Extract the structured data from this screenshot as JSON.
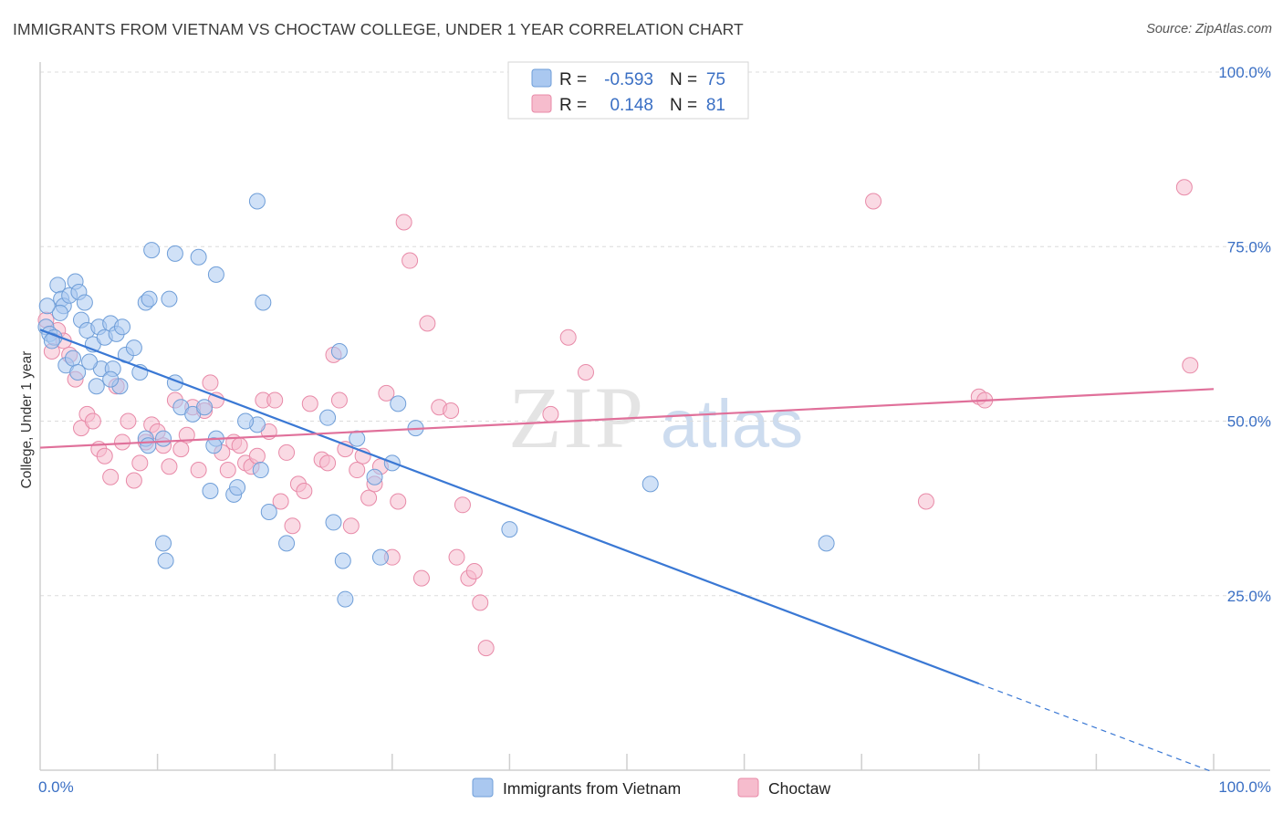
{
  "title": "IMMIGRANTS FROM VIETNAM VS CHOCTAW COLLEGE, UNDER 1 YEAR CORRELATION CHART",
  "source": "Source: ZipAtlas.com",
  "watermark": {
    "zip": "ZIP",
    "atlas": "atlas"
  },
  "colors": {
    "blue_fill": "#aac8f0",
    "blue_stroke": "#6f9ed8",
    "blue_line": "#3a78d4",
    "pink_fill": "#f6bccd",
    "pink_stroke": "#e88aa8",
    "pink_line": "#e0709a",
    "tick_text": "#3a6fc4",
    "grid": "#dcdcdc"
  },
  "legend": {
    "rows": [
      {
        "r_label": "R =",
        "r_value": "-0.593",
        "n_label": "N =",
        "n_value": "75"
      },
      {
        "r_label": "R =",
        "r_value": "0.148",
        "n_label": "N =",
        "n_value": "81"
      }
    ]
  },
  "chart_data": {
    "type": "scatter",
    "xlabel": "",
    "ylabel": "College, Under 1 year",
    "xlim": [
      0,
      100
    ],
    "ylim": [
      0,
      100
    ],
    "x_tick_labels": [
      "0.0%",
      "100.0%"
    ],
    "y_ticks": [
      25,
      50,
      75,
      100
    ],
    "y_tick_labels": [
      "25.0%",
      "50.0%",
      "75.0%",
      "100.0%"
    ],
    "grid": "horizontal dashed",
    "legend_position": "top-center",
    "series": [
      {
        "name": "Immigrants from Vietnam",
        "color": "#aac8f0",
        "trend": {
          "x": [
            0,
            80
          ],
          "y": [
            63.1,
            12.4
          ],
          "dashed_extension": {
            "x": [
              80,
              100
            ],
            "y": [
              12.4,
              -0.3
            ]
          }
        },
        "points": [
          [
            1.5,
            69.5
          ],
          [
            1.8,
            67.5
          ],
          [
            2.0,
            66.5
          ],
          [
            2.5,
            68.0
          ],
          [
            3.0,
            70.0
          ],
          [
            3.3,
            68.5
          ],
          [
            1.7,
            65.5
          ],
          [
            3.5,
            64.5
          ],
          [
            4.0,
            63.0
          ],
          [
            4.5,
            61.0
          ],
          [
            5.0,
            63.5
          ],
          [
            5.5,
            62.0
          ],
          [
            6.0,
            64.0
          ],
          [
            6.5,
            62.5
          ],
          [
            7.0,
            63.5
          ],
          [
            3.8,
            67.0
          ],
          [
            4.8,
            55.0
          ],
          [
            5.2,
            57.5
          ],
          [
            6.2,
            57.5
          ],
          [
            7.3,
            59.5
          ],
          [
            8.0,
            60.5
          ],
          [
            8.5,
            57.0
          ],
          [
            9.0,
            67.0
          ],
          [
            9.3,
            67.5
          ],
          [
            6.8,
            55.0
          ],
          [
            6.0,
            56.0
          ],
          [
            9.5,
            74.5
          ],
          [
            11.0,
            67.5
          ],
          [
            11.5,
            74.0
          ],
          [
            13.5,
            73.5
          ],
          [
            15.0,
            71.0
          ],
          [
            11.5,
            55.5
          ],
          [
            12.0,
            52.0
          ],
          [
            13.0,
            51.0
          ],
          [
            14.0,
            52.0
          ],
          [
            18.5,
            81.5
          ],
          [
            19.0,
            67.0
          ],
          [
            15.0,
            47.5
          ],
          [
            14.8,
            46.5
          ],
          [
            10.5,
            47.5
          ],
          [
            9.0,
            47.5
          ],
          [
            9.2,
            46.5
          ],
          [
            18.5,
            49.5
          ],
          [
            17.5,
            50.0
          ],
          [
            14.5,
            40.0
          ],
          [
            16.5,
            39.5
          ],
          [
            16.8,
            40.5
          ],
          [
            18.8,
            43.0
          ],
          [
            19.5,
            37.0
          ],
          [
            21.0,
            32.5
          ],
          [
            10.5,
            32.5
          ],
          [
            10.7,
            30.0
          ],
          [
            24.5,
            50.5
          ],
          [
            25.0,
            35.5
          ],
          [
            25.8,
            30.0
          ],
          [
            25.5,
            60.0
          ],
          [
            26.0,
            24.5
          ],
          [
            27.0,
            47.5
          ],
          [
            28.5,
            42.0
          ],
          [
            29.0,
            30.5
          ],
          [
            30.0,
            44.0
          ],
          [
            30.5,
            52.5
          ],
          [
            32.0,
            49.0
          ],
          [
            40.0,
            34.5
          ],
          [
            52.0,
            41.0
          ],
          [
            67.0,
            32.5
          ],
          [
            0.5,
            63.5
          ],
          [
            0.8,
            62.5
          ],
          [
            1.2,
            62.0
          ],
          [
            1.0,
            61.5
          ],
          [
            2.2,
            58.0
          ],
          [
            2.8,
            59.0
          ],
          [
            3.2,
            57.0
          ],
          [
            0.6,
            66.5
          ],
          [
            4.2,
            58.5
          ]
        ]
      },
      {
        "name": "Choctaw",
        "color": "#f6bccd",
        "trend": {
          "x": [
            0,
            100
          ],
          "y": [
            46.2,
            54.6
          ]
        },
        "points": [
          [
            0.5,
            64.5
          ],
          [
            1.0,
            60.0
          ],
          [
            1.5,
            63.0
          ],
          [
            2.0,
            61.5
          ],
          [
            2.5,
            59.5
          ],
          [
            3.0,
            56.0
          ],
          [
            3.5,
            49.0
          ],
          [
            4.0,
            51.0
          ],
          [
            4.5,
            50.0
          ],
          [
            5.0,
            46.0
          ],
          [
            5.5,
            45.0
          ],
          [
            6.0,
            42.0
          ],
          [
            6.5,
            55.0
          ],
          [
            7.0,
            47.0
          ],
          [
            7.5,
            50.0
          ],
          [
            8.0,
            41.5
          ],
          [
            8.5,
            44.0
          ],
          [
            9.0,
            47.0
          ],
          [
            9.5,
            49.5
          ],
          [
            10.0,
            48.5
          ],
          [
            10.5,
            46.5
          ],
          [
            11.0,
            43.5
          ],
          [
            11.5,
            53.0
          ],
          [
            12.0,
            46.0
          ],
          [
            12.5,
            48.0
          ],
          [
            13.0,
            52.0
          ],
          [
            13.5,
            43.0
          ],
          [
            14.0,
            51.5
          ],
          [
            14.5,
            55.5
          ],
          [
            15.0,
            53.0
          ],
          [
            15.5,
            45.5
          ],
          [
            16.0,
            43.0
          ],
          [
            16.5,
            47.0
          ],
          [
            17.0,
            46.5
          ],
          [
            17.5,
            44.0
          ],
          [
            18.0,
            43.5
          ],
          [
            18.5,
            45.0
          ],
          [
            19.0,
            53.0
          ],
          [
            19.5,
            48.5
          ],
          [
            20.0,
            53.0
          ],
          [
            20.5,
            38.5
          ],
          [
            21.0,
            45.5
          ],
          [
            21.5,
            35.0
          ],
          [
            22.0,
            41.0
          ],
          [
            22.5,
            40.0
          ],
          [
            23.0,
            52.5
          ],
          [
            24.0,
            44.5
          ],
          [
            24.5,
            44.0
          ],
          [
            25.0,
            59.5
          ],
          [
            25.5,
            53.0
          ],
          [
            26.0,
            46.0
          ],
          [
            26.5,
            35.0
          ],
          [
            27.0,
            43.0
          ],
          [
            27.5,
            45.0
          ],
          [
            28.0,
            39.0
          ],
          [
            28.5,
            41.0
          ],
          [
            29.0,
            43.5
          ],
          [
            29.5,
            54.0
          ],
          [
            30.0,
            30.5
          ],
          [
            30.5,
            38.5
          ],
          [
            31.0,
            78.5
          ],
          [
            31.5,
            73.0
          ],
          [
            32.5,
            27.5
          ],
          [
            33.0,
            64.0
          ],
          [
            34.0,
            52.0
          ],
          [
            35.0,
            51.5
          ],
          [
            35.5,
            30.5
          ],
          [
            36.0,
            38.0
          ],
          [
            36.5,
            27.5
          ],
          [
            37.0,
            28.5
          ],
          [
            37.5,
            24.0
          ],
          [
            38.0,
            17.5
          ],
          [
            43.5,
            51.0
          ],
          [
            45.0,
            62.0
          ],
          [
            46.5,
            57.0
          ],
          [
            71.0,
            81.5
          ],
          [
            75.5,
            38.5
          ],
          [
            80.0,
            53.5
          ],
          [
            80.5,
            53.0
          ],
          [
            97.5,
            83.5
          ],
          [
            98.0,
            58.0
          ]
        ]
      }
    ]
  }
}
